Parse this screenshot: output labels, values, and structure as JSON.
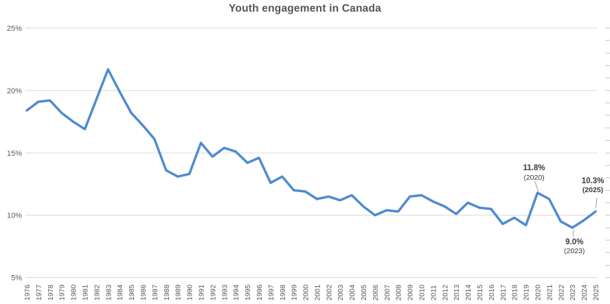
{
  "page": {
    "background": "#FFFFFF"
  },
  "chart_data": {
    "type": "line",
    "title": "Youth engagement in Canada",
    "xlabel": "",
    "ylabel": "",
    "x": [
      1976,
      1977,
      1978,
      1979,
      1980,
      1981,
      1982,
      1983,
      1984,
      1985,
      1986,
      1987,
      1988,
      1989,
      1990,
      1991,
      1992,
      1993,
      1994,
      1995,
      1996,
      1997,
      1998,
      1999,
      2000,
      2001,
      2002,
      2003,
      2004,
      2005,
      2006,
      2007,
      2008,
      2009,
      2010,
      2011,
      2012,
      2013,
      2014,
      2015,
      2016,
      2017,
      2018,
      2019,
      2020,
      2021,
      2022,
      2023,
      2024,
      2025
    ],
    "values": [
      18.4,
      19.1,
      19.2,
      18.2,
      17.5,
      16.9,
      19.3,
      21.7,
      19.9,
      18.2,
      17.2,
      16.1,
      13.6,
      13.1,
      13.3,
      15.8,
      14.7,
      15.4,
      15.1,
      14.2,
      14.6,
      12.6,
      13.1,
      12.0,
      11.9,
      11.3,
      11.5,
      11.2,
      11.6,
      10.7,
      10.0,
      10.4,
      10.3,
      11.5,
      11.6,
      11.1,
      10.7,
      10.1,
      11.0,
      10.6,
      10.5,
      9.3,
      9.8,
      9.2,
      11.8,
      11.3,
      9.5,
      9.0,
      9.6,
      10.3
    ],
    "ylim": [
      5,
      25
    ],
    "ytick_values": [
      25,
      20,
      15,
      10,
      5
    ],
    "ytick_labels": [
      "25%",
      "20%",
      "15%",
      "10%",
      "5%"
    ],
    "minor_tick_step_pct": 1,
    "grid": true,
    "legend": "none",
    "line_color": "#4F8BCF",
    "gridline_color": "#D9D9D9",
    "minor_tick_color": "#C9C9C9",
    "axis_label_color": "#595959",
    "title_color": "#555555",
    "annotation_color": "#3A3A3A",
    "leader_line_color": "#9B9B9B",
    "annotations": [
      {
        "value_label": "11.8%",
        "year_label": "(2020)",
        "year": 2020,
        "value": 11.8,
        "position": "above",
        "year_label_bold": false
      },
      {
        "value_label": "9.0%",
        "year_label": "(2023)",
        "year": 2023,
        "value": 9.0,
        "position": "below",
        "year_label_bold": false
      },
      {
        "value_label": "10.3%",
        "year_label": "(2025)",
        "year": 2025,
        "value": 10.3,
        "position": "above-right",
        "year_label_bold": true
      }
    ]
  }
}
